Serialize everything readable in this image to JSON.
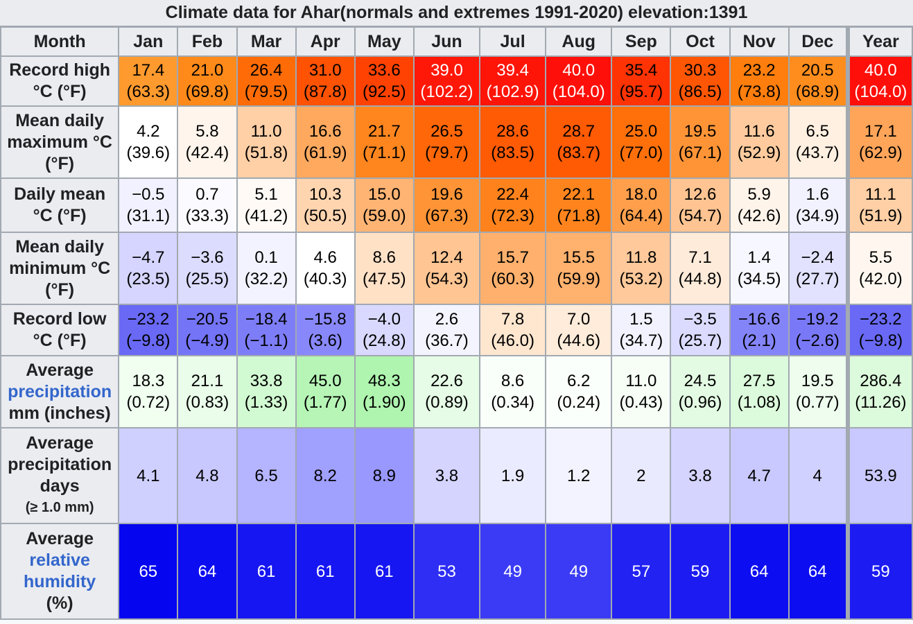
{
  "caption": "Climate data for Ahar(normals and extremes 1991-2020) elevation:1391",
  "header": {
    "month_label": "Month",
    "months": [
      "Jan",
      "Feb",
      "Mar",
      "Apr",
      "May",
      "Jun",
      "Jul",
      "Aug",
      "Sep",
      "Oct",
      "Nov",
      "Dec"
    ],
    "year_label": "Year"
  },
  "rows": [
    {
      "label_lines": [
        "Record high",
        "°C (°F)"
      ],
      "cells": [
        {
          "v": "17.4",
          "f": "(63.3)",
          "bg": "#ff9a2e",
          "fg": "#000000"
        },
        {
          "v": "21.0",
          "f": "(69.8)",
          "bg": "#ff8a1a",
          "fg": "#000000"
        },
        {
          "v": "26.4",
          "f": "(79.5)",
          "bg": "#ff6c07",
          "fg": "#000000"
        },
        {
          "v": "31.0",
          "f": "(87.8)",
          "bg": "#ff5203",
          "fg": "#000000"
        },
        {
          "v": "33.6",
          "f": "(92.5)",
          "bg": "#ff4202",
          "fg": "#000000"
        },
        {
          "v": "39.0",
          "f": "(102.2)",
          "bg": "#ff1708",
          "fg": "#ffffff"
        },
        {
          "v": "39.4",
          "f": "(102.9)",
          "bg": "#ff1408",
          "fg": "#ffffff"
        },
        {
          "v": "40.0",
          "f": "(104.0)",
          "bg": "#ff0f09",
          "fg": "#ffffff"
        },
        {
          "v": "35.4",
          "f": "(95.7)",
          "bg": "#ff3303",
          "fg": "#000000"
        },
        {
          "v": "30.3",
          "f": "(86.5)",
          "bg": "#ff5604",
          "fg": "#000000"
        },
        {
          "v": "23.2",
          "f": "(73.8)",
          "bg": "#ff7e0e",
          "fg": "#000000"
        },
        {
          "v": "20.5",
          "f": "(68.9)",
          "bg": "#ff8d1e",
          "fg": "#000000"
        }
      ],
      "year": {
        "v": "40.0",
        "f": "(104.0)",
        "bg": "#ff0f09",
        "fg": "#ffffff"
      }
    },
    {
      "label_lines": [
        "Mean daily",
        "maximum °C",
        "(°F)"
      ],
      "cells": [
        {
          "v": "4.2",
          "f": "(39.6)",
          "bg": "#ffffff",
          "fg": "#000000"
        },
        {
          "v": "5.8",
          "f": "(42.4)",
          "bg": "#fff5ec",
          "fg": "#000000"
        },
        {
          "v": "11.0",
          "f": "(51.8)",
          "bg": "#ffcfa6",
          "fg": "#000000"
        },
        {
          "v": "16.6",
          "f": "(61.9)",
          "bg": "#ffa95f",
          "fg": "#000000"
        },
        {
          "v": "21.7",
          "f": "(71.1)",
          "bg": "#ff861f",
          "fg": "#000000"
        },
        {
          "v": "26.5",
          "f": "(79.7)",
          "bg": "#ff6708",
          "fg": "#000000"
        },
        {
          "v": "28.6",
          "f": "(83.5)",
          "bg": "#ff5a04",
          "fg": "#000000"
        },
        {
          "v": "28.7",
          "f": "(83.7)",
          "bg": "#ff5a04",
          "fg": "#000000"
        },
        {
          "v": "25.0",
          "f": "(77.0)",
          "bg": "#ff700b",
          "fg": "#000000"
        },
        {
          "v": "19.5",
          "f": "(67.1)",
          "bg": "#ff9437",
          "fg": "#000000"
        },
        {
          "v": "11.6",
          "f": "(52.9)",
          "bg": "#ffcb9e",
          "fg": "#000000"
        },
        {
          "v": "6.5",
          "f": "(43.7)",
          "bg": "#fff0e1",
          "fg": "#000000"
        }
      ],
      "year": {
        "v": "17.1",
        "f": "(62.9)",
        "bg": "#ffa55a",
        "fg": "#000000"
      }
    },
    {
      "label_lines": [
        "Daily mean",
        "°C (°F)"
      ],
      "cells": [
        {
          "v": "−0.5",
          "f": "(31.1)",
          "bg": "#f1f1ff",
          "fg": "#000000"
        },
        {
          "v": "0.7",
          "f": "(33.3)",
          "bg": "#fbfbff",
          "fg": "#000000"
        },
        {
          "v": "5.1",
          "f": "(41.2)",
          "bg": "#fffaf6",
          "fg": "#000000"
        },
        {
          "v": "10.3",
          "f": "(50.5)",
          "bg": "#ffd5b0",
          "fg": "#000000"
        },
        {
          "v": "15.0",
          "f": "(59.0)",
          "bg": "#ffb474",
          "fg": "#000000"
        },
        {
          "v": "19.6",
          "f": "(67.3)",
          "bg": "#ff9436",
          "fg": "#000000"
        },
        {
          "v": "22.4",
          "f": "(72.3)",
          "bg": "#ff821c",
          "fg": "#000000"
        },
        {
          "v": "22.1",
          "f": "(71.8)",
          "bg": "#ff841d",
          "fg": "#000000"
        },
        {
          "v": "18.0",
          "f": "(64.4)",
          "bg": "#ff9f4c",
          "fg": "#000000"
        },
        {
          "v": "12.6",
          "f": "(54.7)",
          "bg": "#ffc491",
          "fg": "#000000"
        },
        {
          "v": "5.9",
          "f": "(42.6)",
          "bg": "#fff4ea",
          "fg": "#000000"
        },
        {
          "v": "1.6",
          "f": "(34.9)",
          "bg": "#f2f2ff",
          "fg": "#000000"
        }
      ],
      "year": {
        "v": "11.1",
        "f": "(51.9)",
        "bg": "#ffcfa5",
        "fg": "#000000"
      }
    },
    {
      "label_lines": [
        "Mean daily",
        "minimum °C",
        "(°F)"
      ],
      "cells": [
        {
          "v": "−4.7",
          "f": "(23.5)",
          "bg": "#d5d5ff",
          "fg": "#000000"
        },
        {
          "v": "−3.6",
          "f": "(25.5)",
          "bg": "#dcdcff",
          "fg": "#000000"
        },
        {
          "v": "0.1",
          "f": "(32.2)",
          "bg": "#f3f3ff",
          "fg": "#000000"
        },
        {
          "v": "4.6",
          "f": "(40.3)",
          "bg": "#ffffff",
          "fg": "#000000"
        },
        {
          "v": "8.6",
          "f": "(47.5)",
          "bg": "#ffe1c6",
          "fg": "#000000"
        },
        {
          "v": "12.4",
          "f": "(54.3)",
          "bg": "#ffc593",
          "fg": "#000000"
        },
        {
          "v": "15.7",
          "f": "(60.3)",
          "bg": "#ffb06c",
          "fg": "#000000"
        },
        {
          "v": "15.5",
          "f": "(59.9)",
          "bg": "#ffb16e",
          "fg": "#000000"
        },
        {
          "v": "11.8",
          "f": "(53.2)",
          "bg": "#ffc99b",
          "fg": "#000000"
        },
        {
          "v": "7.1",
          "f": "(44.8)",
          "bg": "#ffebd9",
          "fg": "#000000"
        },
        {
          "v": "1.4",
          "f": "(34.5)",
          "bg": "#f7f7ff",
          "fg": "#000000"
        },
        {
          "v": "−2.4",
          "f": "(27.7)",
          "bg": "#e2e2ff",
          "fg": "#000000"
        }
      ],
      "year": {
        "v": "5.5",
        "f": "(42.0)",
        "bg": "#fff7ef",
        "fg": "#000000"
      }
    },
    {
      "label_lines": [
        "Record low",
        "°C (°F)"
      ],
      "cells": [
        {
          "v": "−23.2",
          "f": "(−9.8)",
          "bg": "#6969f5",
          "fg": "#000000"
        },
        {
          "v": "−20.5",
          "f": "(−4.9)",
          "bg": "#7474f7",
          "fg": "#000000"
        },
        {
          "v": "−18.4",
          "f": "(−1.1)",
          "bg": "#7d7df8",
          "fg": "#000000"
        },
        {
          "v": "−15.8",
          "f": "(3.6)",
          "bg": "#8888fa",
          "fg": "#000000"
        },
        {
          "v": "−4.0",
          "f": "(24.8)",
          "bg": "#d9d9ff",
          "fg": "#000000"
        },
        {
          "v": "2.6",
          "f": "(36.7)",
          "bg": "#f4f4ff",
          "fg": "#000000"
        },
        {
          "v": "7.8",
          "f": "(46.0)",
          "bg": "#ffe6cf",
          "fg": "#000000"
        },
        {
          "v": "7.0",
          "f": "(44.6)",
          "bg": "#ffecda",
          "fg": "#000000"
        },
        {
          "v": "1.5",
          "f": "(34.7)",
          "bg": "#f2f2ff",
          "fg": "#000000"
        },
        {
          "v": "−3.5",
          "f": "(25.7)",
          "bg": "#dbdbff",
          "fg": "#000000"
        },
        {
          "v": "−16.6",
          "f": "(2.1)",
          "bg": "#8484f9",
          "fg": "#000000"
        },
        {
          "v": "−19.2",
          "f": "(−2.6)",
          "bg": "#7979f7",
          "fg": "#000000"
        }
      ],
      "year": {
        "v": "−23.2",
        "f": "(−9.8)",
        "bg": "#6969f5",
        "fg": "#000000"
      }
    },
    {
      "label_lines": [
        "Average",
        "precipitation",
        "mm (inches)"
      ],
      "label_link_line": 1,
      "cells": [
        {
          "v": "18.3",
          "f": "(0.72)",
          "bg": "#f0fff0",
          "fg": "#000000"
        },
        {
          "v": "21.1",
          "f": "(0.83)",
          "bg": "#eafdea",
          "fg": "#000000"
        },
        {
          "v": "33.8",
          "f": "(1.33)",
          "bg": "#d2fad2",
          "fg": "#000000"
        },
        {
          "v": "45.0",
          "f": "(1.77)",
          "bg": "#b6f5b6",
          "fg": "#000000"
        },
        {
          "v": "48.3",
          "f": "(1.90)",
          "bg": "#aff4af",
          "fg": "#000000"
        },
        {
          "v": "22.6",
          "f": "(0.89)",
          "bg": "#e6fce6",
          "fg": "#000000"
        },
        {
          "v": "8.6",
          "f": "(0.34)",
          "bg": "#f9fff9",
          "fg": "#000000"
        },
        {
          "v": "6.2",
          "f": "(0.24)",
          "bg": "#fbfffb",
          "fg": "#000000"
        },
        {
          "v": "11.0",
          "f": "(0.43)",
          "bg": "#f6fef6",
          "fg": "#000000"
        },
        {
          "v": "24.5",
          "f": "(0.96)",
          "bg": "#e3fbe3",
          "fg": "#000000"
        },
        {
          "v": "27.5",
          "f": "(1.08)",
          "bg": "#dcfadc",
          "fg": "#000000"
        },
        {
          "v": "19.5",
          "f": "(0.77)",
          "bg": "#eefdee",
          "fg": "#000000"
        }
      ],
      "year": {
        "v": "286.4",
        "f": "(11.26)",
        "bg": "#dcfadc",
        "fg": "#000000"
      }
    },
    {
      "label_lines": [
        "Average",
        "precipitation",
        "days"
      ],
      "label_small": "(≥ 1.0 mm)",
      "single": true,
      "cells": [
        {
          "v": "4.1",
          "bg": "#d0d0ff",
          "fg": "#000000"
        },
        {
          "v": "4.8",
          "bg": "#c8c8ff",
          "fg": "#000000"
        },
        {
          "v": "6.5",
          "bg": "#b4b4ff",
          "fg": "#000000"
        },
        {
          "v": "8.2",
          "bg": "#a0a0ff",
          "fg": "#000000"
        },
        {
          "v": "8.9",
          "bg": "#9898ff",
          "fg": "#000000"
        },
        {
          "v": "3.8",
          "bg": "#d4d4ff",
          "fg": "#000000"
        },
        {
          "v": "1.9",
          "bg": "#ebebff",
          "fg": "#000000"
        },
        {
          "v": "1.2",
          "bg": "#f3f3ff",
          "fg": "#000000"
        },
        {
          "v": "2",
          "bg": "#eaeaff",
          "fg": "#000000"
        },
        {
          "v": "3.8",
          "bg": "#d4d4ff",
          "fg": "#000000"
        },
        {
          "v": "4.7",
          "bg": "#c9c9ff",
          "fg": "#000000"
        },
        {
          "v": "4",
          "bg": "#d1d1ff",
          "fg": "#000000"
        }
      ],
      "year": {
        "v": "53.9",
        "bg": "#c9c9ff",
        "fg": "#000000"
      }
    },
    {
      "label_lines": [
        "Average",
        "relative",
        "humidity",
        "(%)"
      ],
      "label_link_lines": [
        1,
        2
      ],
      "single": true,
      "cells": [
        {
          "v": "65",
          "bg": "#0505f0",
          "fg": "#ffffff"
        },
        {
          "v": "64",
          "bg": "#0d0df1",
          "fg": "#ffffff"
        },
        {
          "v": "61",
          "bg": "#1616f2",
          "fg": "#ffffff"
        },
        {
          "v": "61",
          "bg": "#1616f2",
          "fg": "#ffffff"
        },
        {
          "v": "61",
          "bg": "#1616f2",
          "fg": "#ffffff"
        },
        {
          "v": "53",
          "bg": "#2e2ef4",
          "fg": "#ffffff"
        },
        {
          "v": "49",
          "bg": "#3b3bf5",
          "fg": "#ffffff"
        },
        {
          "v": "49",
          "bg": "#3b3bf5",
          "fg": "#ffffff"
        },
        {
          "v": "57",
          "bg": "#2222f3",
          "fg": "#ffffff"
        },
        {
          "v": "59",
          "bg": "#1c1cf2",
          "fg": "#ffffff"
        },
        {
          "v": "64",
          "bg": "#0d0df1",
          "fg": "#ffffff"
        },
        {
          "v": "64",
          "bg": "#0d0df1",
          "fg": "#ffffff"
        }
      ],
      "year": {
        "v": "59",
        "bg": "#1c1cf2",
        "fg": "#ffffff"
      }
    }
  ]
}
